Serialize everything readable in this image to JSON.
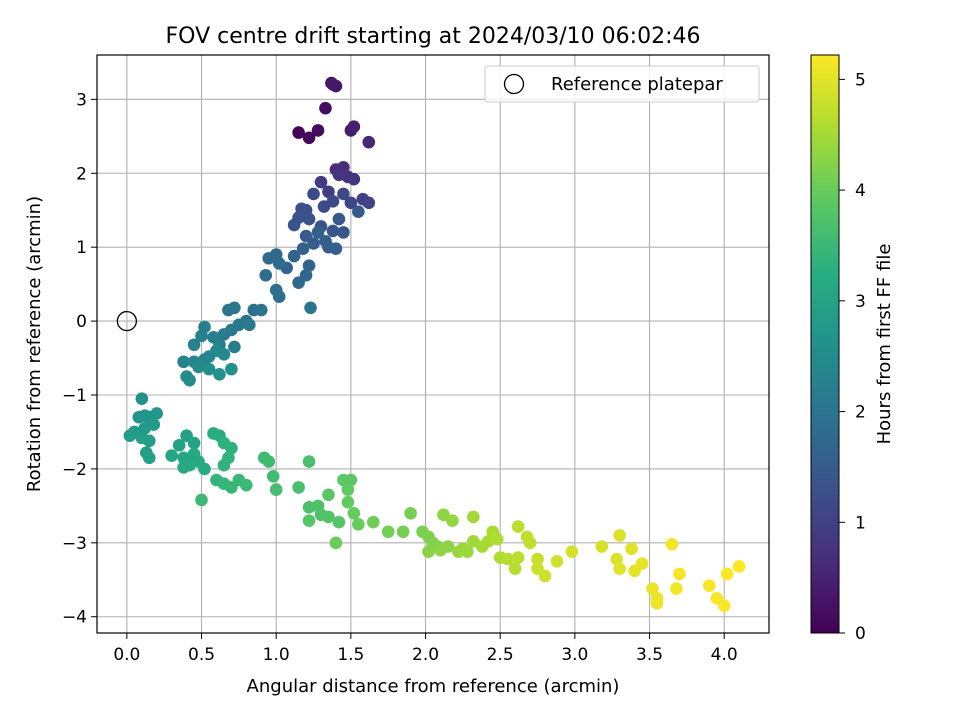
{
  "chart_data": {
    "type": "scatter",
    "title": "FOV centre drift starting at 2024/03/10 06:02:46",
    "xlabel": "Angular distance from reference (arcmin)",
    "ylabel": "Rotation from reference (arcmin)",
    "xlim": [
      -0.2,
      4.3
    ],
    "ylim": [
      -4.22,
      3.6
    ],
    "xticks": [
      0.0,
      0.5,
      1.0,
      1.5,
      2.0,
      2.5,
      3.0,
      3.5,
      4.0
    ],
    "xtick_labels": [
      "0.0",
      "0.5",
      "1.0",
      "1.5",
      "2.0",
      "2.5",
      "3.0",
      "3.5",
      "4.0"
    ],
    "yticks": [
      3,
      2,
      1,
      0,
      -1,
      -2,
      -3,
      -4
    ],
    "ytick_labels": [
      "3",
      "2",
      "1",
      "0",
      "−1",
      "−2",
      "−3",
      "−4"
    ],
    "grid": true,
    "legend": {
      "position": "top-right",
      "entries": [
        {
          "label": "Reference platepar",
          "marker": "open-circle"
        }
      ]
    },
    "reference_point": {
      "x": 0.0,
      "y": 0.0
    },
    "colorbar": {
      "label": "Hours from first FF file",
      "colormap": "viridis",
      "range": [
        0,
        5.22
      ],
      "ticks": [
        0,
        1,
        2,
        3,
        4,
        5
      ],
      "tick_labels": [
        "0",
        "1",
        "2",
        "3",
        "4",
        "5"
      ]
    },
    "points": [
      [
        1.15,
        2.55,
        0.05
      ],
      [
        1.22,
        2.48,
        0.1
      ],
      [
        1.28,
        2.58,
        0.15
      ],
      [
        1.33,
        2.88,
        0.2
      ],
      [
        1.37,
        3.22,
        0.25
      ],
      [
        1.4,
        3.18,
        0.3
      ],
      [
        1.38,
        3.2,
        0.35
      ],
      [
        1.5,
        2.58,
        0.4
      ],
      [
        1.52,
        2.63,
        0.45
      ],
      [
        1.62,
        2.42,
        0.55
      ],
      [
        1.4,
        2.05,
        0.65
      ],
      [
        1.45,
        2.08,
        0.7
      ],
      [
        1.48,
        1.95,
        0.75
      ],
      [
        1.42,
        1.98,
        0.8
      ],
      [
        1.52,
        1.92,
        0.85
      ],
      [
        1.3,
        1.88,
        0.9
      ],
      [
        1.35,
        1.75,
        0.95
      ],
      [
        1.58,
        1.65,
        1.0
      ],
      [
        1.62,
        1.6,
        1.05
      ],
      [
        1.5,
        1.6,
        1.1
      ],
      [
        1.45,
        1.72,
        1.12
      ],
      [
        1.38,
        1.62,
        1.15
      ],
      [
        1.32,
        1.55,
        1.18
      ],
      [
        1.25,
        1.72,
        1.2
      ],
      [
        1.2,
        1.5,
        1.22
      ],
      [
        1.17,
        1.52,
        1.25
      ],
      [
        1.15,
        1.4,
        1.28
      ],
      [
        1.22,
        1.38,
        1.3
      ],
      [
        1.3,
        1.28,
        1.32
      ],
      [
        1.12,
        1.3,
        1.35
      ],
      [
        1.38,
        1.22,
        1.38
      ],
      [
        1.45,
        1.2,
        1.4
      ],
      [
        1.42,
        1.38,
        1.42
      ],
      [
        1.55,
        1.48,
        1.45
      ],
      [
        1.2,
        1.15,
        1.48
      ],
      [
        1.25,
        1.05,
        1.5
      ],
      [
        1.33,
        1.08,
        1.52
      ],
      [
        1.35,
        1.0,
        1.55
      ],
      [
        1.4,
        0.98,
        1.58
      ],
      [
        1.28,
        1.2,
        1.6
      ],
      [
        1.18,
        0.98,
        1.62
      ],
      [
        1.12,
        0.88,
        1.65
      ],
      [
        1.07,
        0.72,
        1.68
      ],
      [
        1.22,
        0.75,
        1.7
      ],
      [
        1.2,
        0.62,
        1.72
      ],
      [
        1.15,
        0.52,
        1.75
      ],
      [
        1.0,
        0.9,
        1.78
      ],
      [
        0.95,
        0.85,
        1.8
      ],
      [
        1.02,
        0.78,
        1.82
      ],
      [
        0.93,
        0.62,
        1.85
      ],
      [
        1.0,
        0.42,
        1.88
      ],
      [
        1.02,
        0.33,
        1.9
      ],
      [
        0.85,
        0.15,
        1.92
      ],
      [
        0.8,
        0.0,
        1.95
      ],
      [
        0.9,
        0.15,
        1.98
      ],
      [
        1.23,
        0.18,
        2.0
      ],
      [
        0.72,
        0.18,
        2.02
      ],
      [
        0.68,
        0.15,
        2.05
      ],
      [
        0.75,
        -0.05,
        2.08
      ],
      [
        0.82,
        -0.05,
        2.1
      ],
      [
        0.7,
        -0.12,
        2.12
      ],
      [
        0.65,
        -0.18,
        2.15
      ],
      [
        0.72,
        -0.35,
        2.18
      ],
      [
        0.62,
        -0.32,
        2.2
      ],
      [
        0.58,
        -0.22,
        2.22
      ],
      [
        0.52,
        -0.08,
        2.25
      ],
      [
        0.5,
        -0.2,
        2.28
      ],
      [
        0.45,
        -0.32,
        2.3
      ],
      [
        0.38,
        -0.55,
        2.32
      ],
      [
        0.45,
        -0.55,
        2.35
      ],
      [
        0.52,
        -0.52,
        2.38
      ],
      [
        0.55,
        -0.48,
        2.4
      ],
      [
        0.6,
        -0.4,
        2.42
      ],
      [
        0.65,
        -0.45,
        2.45
      ],
      [
        0.48,
        -0.62,
        2.48
      ],
      [
        0.4,
        -0.75,
        2.5
      ],
      [
        0.42,
        -0.8,
        2.52
      ],
      [
        0.55,
        -0.65,
        2.55
      ],
      [
        0.62,
        -0.72,
        2.58
      ],
      [
        0.7,
        -0.65,
        2.6
      ],
      [
        0.1,
        -1.05,
        2.62
      ],
      [
        0.12,
        -1.28,
        2.68
      ],
      [
        0.08,
        -1.3,
        2.7
      ],
      [
        0.15,
        -1.3,
        2.72
      ],
      [
        0.2,
        -1.25,
        2.75
      ],
      [
        0.18,
        -1.4,
        2.78
      ],
      [
        0.12,
        -1.45,
        2.8
      ],
      [
        0.05,
        -1.5,
        2.82
      ],
      [
        0.02,
        -1.55,
        2.85
      ],
      [
        0.1,
        -1.58,
        2.88
      ],
      [
        0.15,
        -1.62,
        2.9
      ],
      [
        0.13,
        -1.78,
        2.92
      ],
      [
        0.15,
        -1.85,
        2.95
      ],
      [
        0.35,
        -1.68,
        2.98
      ],
      [
        0.4,
        -1.55,
        3.0
      ],
      [
        0.45,
        -1.65,
        3.02
      ],
      [
        0.3,
        -1.82,
        3.05
      ],
      [
        0.38,
        -1.85,
        3.08
      ],
      [
        0.45,
        -1.8,
        3.1
      ],
      [
        0.48,
        -1.9,
        3.12
      ],
      [
        0.42,
        -1.95,
        3.15
      ],
      [
        0.38,
        -1.98,
        3.18
      ],
      [
        0.52,
        -2.0,
        3.2
      ],
      [
        0.58,
        -1.52,
        3.25
      ],
      [
        0.62,
        -1.55,
        3.28
      ],
      [
        0.65,
        -1.65,
        3.3
      ],
      [
        0.7,
        -1.72,
        3.32
      ],
      [
        0.68,
        -1.85,
        3.35
      ],
      [
        0.65,
        -1.95,
        3.38
      ],
      [
        0.6,
        -2.15,
        3.4
      ],
      [
        0.65,
        -2.2,
        3.42
      ],
      [
        0.7,
        -2.25,
        3.45
      ],
      [
        0.75,
        -2.15,
        3.48
      ],
      [
        0.8,
        -2.22,
        3.5
      ],
      [
        0.5,
        -2.42,
        3.52
      ],
      [
        0.92,
        -1.85,
        3.55
      ],
      [
        0.95,
        -1.9,
        3.58
      ],
      [
        0.98,
        -2.1,
        3.6
      ],
      [
        1.0,
        -2.28,
        3.62
      ],
      [
        1.15,
        -2.25,
        3.65
      ],
      [
        1.22,
        -1.9,
        3.68
      ],
      [
        1.22,
        -2.52,
        3.7
      ],
      [
        1.28,
        -2.5,
        3.72
      ],
      [
        1.3,
        -2.62,
        3.75
      ],
      [
        1.35,
        -2.65,
        3.78
      ],
      [
        1.42,
        -2.72,
        3.8
      ],
      [
        1.22,
        -2.7,
        3.82
      ],
      [
        1.35,
        -2.35,
        3.85
      ],
      [
        1.45,
        -2.15,
        3.88
      ],
      [
        1.5,
        -2.15,
        3.9
      ],
      [
        1.48,
        -2.28,
        3.92
      ],
      [
        1.48,
        -2.45,
        3.95
      ],
      [
        1.52,
        -2.6,
        3.98
      ],
      [
        1.55,
        -2.75,
        4.0
      ],
      [
        1.4,
        -3.0,
        4.02
      ],
      [
        1.65,
        -2.72,
        4.05
      ],
      [
        1.75,
        -2.85,
        4.08
      ],
      [
        1.85,
        -2.85,
        4.1
      ],
      [
        1.9,
        -2.6,
        4.12
      ],
      [
        1.98,
        -2.85,
        4.15
      ],
      [
        2.02,
        -2.92,
        4.18
      ],
      [
        2.05,
        -3.0,
        4.2
      ],
      [
        2.08,
        -3.05,
        4.22
      ],
      [
        2.02,
        -3.12,
        4.25
      ],
      [
        2.1,
        -3.1,
        4.28
      ],
      [
        2.15,
        -3.05,
        4.3
      ],
      [
        2.12,
        -2.62,
        4.32
      ],
      [
        2.18,
        -2.7,
        4.35
      ],
      [
        2.22,
        -3.12,
        4.38
      ],
      [
        2.25,
        -3.08,
        4.4
      ],
      [
        2.28,
        -3.12,
        4.42
      ],
      [
        2.32,
        -2.98,
        4.45
      ],
      [
        2.32,
        -2.65,
        4.48
      ],
      [
        2.38,
        -3.05,
        4.5
      ],
      [
        2.42,
        -2.98,
        4.52
      ],
      [
        2.45,
        -2.85,
        4.55
      ],
      [
        2.48,
        -2.95,
        4.58
      ],
      [
        2.5,
        -3.2,
        4.6
      ],
      [
        2.55,
        -3.22,
        4.62
      ],
      [
        2.6,
        -3.35,
        4.65
      ],
      [
        2.62,
        -3.2,
        4.68
      ],
      [
        2.62,
        -2.78,
        4.7
      ],
      [
        2.68,
        -2.92,
        4.72
      ],
      [
        2.7,
        -3.0,
        4.75
      ],
      [
        2.75,
        -3.22,
        4.78
      ],
      [
        2.75,
        -3.35,
        4.8
      ],
      [
        2.8,
        -3.45,
        4.82
      ],
      [
        2.88,
        -3.25,
        4.85
      ],
      [
        2.98,
        -3.12,
        4.88
      ],
      [
        3.18,
        -3.05,
        4.9
      ],
      [
        3.28,
        -3.22,
        4.92
      ],
      [
        3.3,
        -2.9,
        4.95
      ],
      [
        3.3,
        -3.35,
        4.98
      ],
      [
        3.38,
        -3.08,
        5.0
      ],
      [
        3.4,
        -3.38,
        5.02
      ],
      [
        3.45,
        -3.28,
        5.05
      ],
      [
        3.52,
        -3.62,
        5.07
      ],
      [
        3.55,
        -3.75,
        5.08
      ],
      [
        3.55,
        -3.82,
        5.1
      ],
      [
        3.65,
        -3.02,
        5.12
      ],
      [
        3.68,
        -3.62,
        5.14
      ],
      [
        3.7,
        -3.42,
        5.15
      ],
      [
        3.9,
        -3.58,
        5.17
      ],
      [
        3.95,
        -3.75,
        5.18
      ],
      [
        4.0,
        -3.85,
        5.2
      ],
      [
        4.02,
        -3.42,
        5.21
      ],
      [
        4.1,
        -3.32,
        5.22
      ]
    ]
  }
}
